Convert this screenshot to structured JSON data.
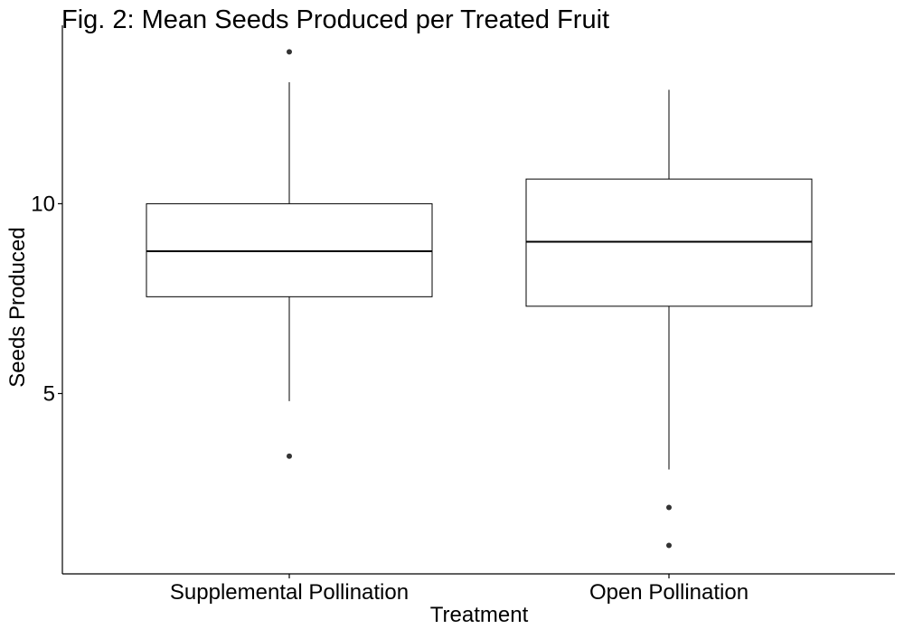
{
  "chart_data": {
    "type": "box",
    "title": "Fig. 2: Mean Seeds Produced per Treated Fruit",
    "xlabel": "Treatment",
    "ylabel": "Seeds Produced",
    "categories": [
      "Supplemental Pollination",
      "Open Pollination"
    ],
    "y_ticks": [
      5,
      10
    ],
    "ylim": [
      0.25,
      14.7
    ],
    "grid": false,
    "legend": "none",
    "boxes": [
      {
        "category": "Supplemental Pollination",
        "lower_whisker": 4.8,
        "q1": 7.55,
        "median": 8.75,
        "q3": 10.0,
        "upper_whisker": 13.2,
        "outliers": [
          14.0,
          3.35
        ]
      },
      {
        "category": "Open Pollination",
        "lower_whisker": 3.0,
        "q1": 7.3,
        "median": 9.0,
        "q3": 10.65,
        "upper_whisker": 13.0,
        "outliers": [
          2.0,
          1.0
        ]
      }
    ],
    "colors": {
      "box_fill": "#ffffff",
      "line": "#000000",
      "point": "#333333"
    }
  }
}
